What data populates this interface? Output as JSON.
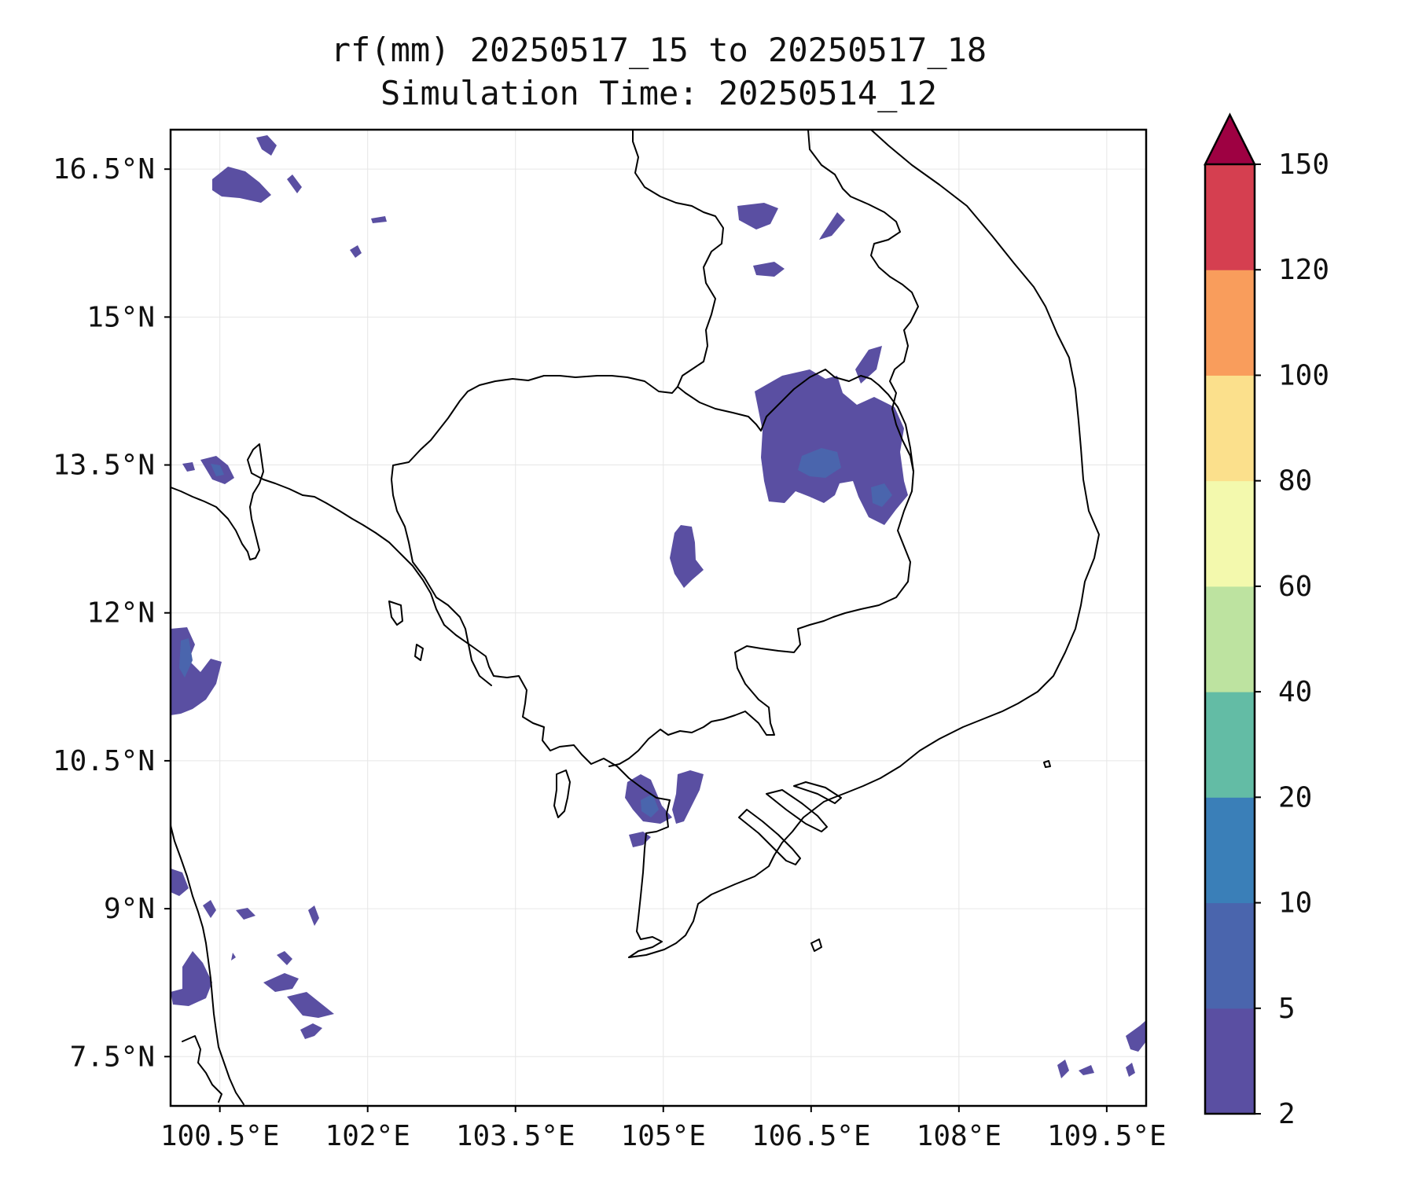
{
  "map": {
    "title_line1": "rf(mm) 20250517_15 to 20250517_18",
    "title_line2": "Simulation Time: 20250514_12",
    "lon_ticks": [
      "100.5°E",
      "102°E",
      "103.5°E",
      "105°E",
      "106.5°E",
      "108°E",
      "109.5°E"
    ],
    "lat_ticks": [
      "16.5°N",
      "15°N",
      "13.5°N",
      "12°N",
      "10.5°N",
      "9°N",
      "7.5°N"
    ],
    "lon_tick_values": [
      100.5,
      102,
      103.5,
      105,
      106.5,
      108,
      109.5
    ],
    "lat_tick_values": [
      16.5,
      15,
      13.5,
      12,
      10.5,
      9,
      7.5
    ],
    "lon_range": [
      100.0,
      109.9
    ],
    "lat_range": [
      7.0,
      16.9
    ],
    "gridlines": true,
    "region": "Cambodia, southern Laos, southern Vietnam, eastern Thailand, Gulf of Thailand"
  },
  "colorbar": {
    "levels": [
      "2",
      "5",
      "10",
      "20",
      "40",
      "60",
      "80",
      "100",
      "120",
      "150"
    ],
    "colors": [
      "#5a4fa2",
      "#4a65ad",
      "#3a7fb8",
      "#63bca5",
      "#bde3a0",
      "#f3f9ad",
      "#fbe08c",
      "#f99d5c",
      "#d53f50",
      "#9e0142"
    ],
    "extend": "max"
  },
  "colors": {
    "rain_2_5": "#5a4fa2",
    "rain_5_10": "#4a65ad",
    "coastline": "#000000",
    "grid": "#e6e6e6"
  }
}
